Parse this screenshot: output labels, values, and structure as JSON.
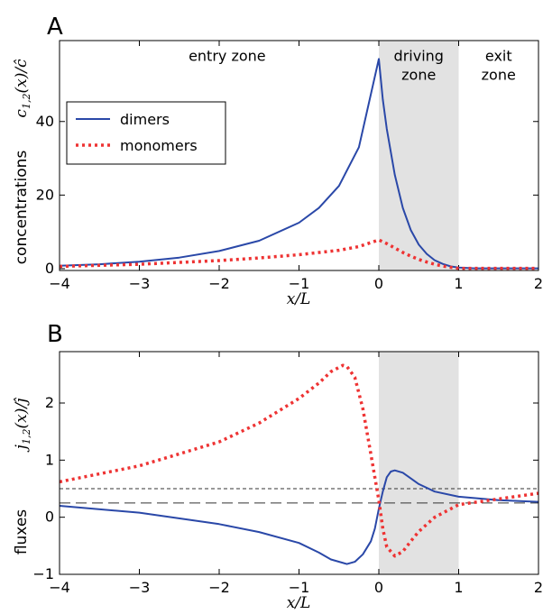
{
  "chart_data": [
    {
      "panel": "A",
      "type": "line",
      "xlabel": "x/L",
      "ylabel": "concentrations",
      "ylabel_math": "c1,2(x)/ĉ",
      "xlim": [
        -4,
        2
      ],
      "ylim": [
        -0.5,
        62
      ],
      "xticks": [
        -4,
        -3,
        -2,
        -1,
        0,
        1,
        2
      ],
      "yticks": [
        0,
        20,
        40
      ],
      "shaded_region": [
        0,
        1
      ],
      "zone_labels": [
        {
          "text": "entry zone",
          "x": -1.9,
          "y": 56.5
        },
        {
          "text": "driving",
          "x": 0.5,
          "y": 56.5
        },
        {
          "text": "zone",
          "x": 0.5,
          "y": 51.3
        },
        {
          "text": "exit",
          "x": 1.5,
          "y": 56.5
        },
        {
          "text": "zone",
          "x": 1.5,
          "y": 51.3
        }
      ],
      "legend": {
        "placement": "center-left",
        "entries": [
          "dimers",
          "monomers"
        ]
      },
      "series": [
        {
          "name": "dimers",
          "style": "solid",
          "color": "#2a48a8",
          "x": [
            -4,
            -3.5,
            -3,
            -2.5,
            -2,
            -1.5,
            -1,
            -0.75,
            -0.5,
            -0.25,
            0,
            0.05,
            0.1,
            0.2,
            0.3,
            0.4,
            0.5,
            0.6,
            0.7,
            0.8,
            0.9,
            1.0,
            1.2,
            1.5,
            2
          ],
          "y": [
            0.8,
            1.2,
            1.9,
            3.0,
            4.8,
            7.6,
            12.5,
            16.5,
            22.5,
            33,
            57,
            46,
            38,
            25.5,
            16.5,
            10.5,
            6.5,
            4.0,
            2.3,
            1.3,
            0.6,
            0.3,
            0.1,
            0.1,
            0.1
          ]
        },
        {
          "name": "monomers",
          "style": "dotted",
          "color": "#ee3333",
          "x": [
            -4,
            -3,
            -2,
            -1.5,
            -1,
            -0.5,
            -0.25,
            0,
            0.1,
            0.2,
            0.3,
            0.4,
            0.5,
            0.6,
            0.7,
            0.8,
            0.9,
            1.0,
            1.2,
            1.5,
            2
          ],
          "y": [
            0.6,
            1.2,
            2.2,
            2.9,
            3.8,
            5.0,
            6.0,
            7.8,
            6.8,
            5.6,
            4.4,
            3.4,
            2.5,
            1.8,
            1.2,
            0.7,
            0.35,
            0.1,
            0.1,
            0.1,
            0.1
          ]
        }
      ]
    },
    {
      "panel": "B",
      "type": "line",
      "xlabel": "x/L",
      "ylabel": "fluxes",
      "ylabel_math": "j1,2(x)/ĵ",
      "xlim": [
        -4,
        2
      ],
      "ylim": [
        -1,
        2.9
      ],
      "xticks": [
        -4,
        -3,
        -2,
        -1,
        0,
        1,
        2
      ],
      "yticks": [
        -1,
        0,
        1,
        2
      ],
      "shaded_region": [
        0,
        1
      ],
      "reference_lines": [
        {
          "y": 0.5,
          "style": "short-dash"
        },
        {
          "y": 0.25,
          "style": "long-dash"
        }
      ],
      "series": [
        {
          "name": "dimers",
          "style": "solid",
          "color": "#2a48a8",
          "x": [
            -4,
            -3,
            -2,
            -1.5,
            -1,
            -0.75,
            -0.6,
            -0.4,
            -0.3,
            -0.2,
            -0.1,
            -0.05,
            0,
            0.05,
            0.1,
            0.15,
            0.2,
            0.3,
            0.4,
            0.5,
            0.7,
            1.0,
            1.5,
            2
          ],
          "y": [
            0.2,
            0.08,
            -0.12,
            -0.26,
            -0.45,
            -0.62,
            -0.74,
            -0.82,
            -0.78,
            -0.65,
            -0.42,
            -0.2,
            0.15,
            0.45,
            0.7,
            0.8,
            0.82,
            0.78,
            0.68,
            0.58,
            0.45,
            0.36,
            0.3,
            0.27
          ]
        },
        {
          "name": "monomers",
          "style": "dotted",
          "color": "#ee3333",
          "x": [
            -4,
            -3,
            -2,
            -1.5,
            -1,
            -0.75,
            -0.6,
            -0.45,
            -0.4,
            -0.3,
            -0.2,
            -0.1,
            0,
            0.05,
            0.1,
            0.2,
            0.3,
            0.4,
            0.5,
            0.7,
            1.0,
            1.5,
            2
          ],
          "y": [
            0.62,
            0.9,
            1.32,
            1.65,
            2.08,
            2.35,
            2.55,
            2.66,
            2.64,
            2.45,
            1.9,
            1.1,
            0.3,
            -0.2,
            -0.52,
            -0.68,
            -0.6,
            -0.42,
            -0.25,
            0.0,
            0.22,
            0.32,
            0.42
          ]
        }
      ]
    }
  ]
}
